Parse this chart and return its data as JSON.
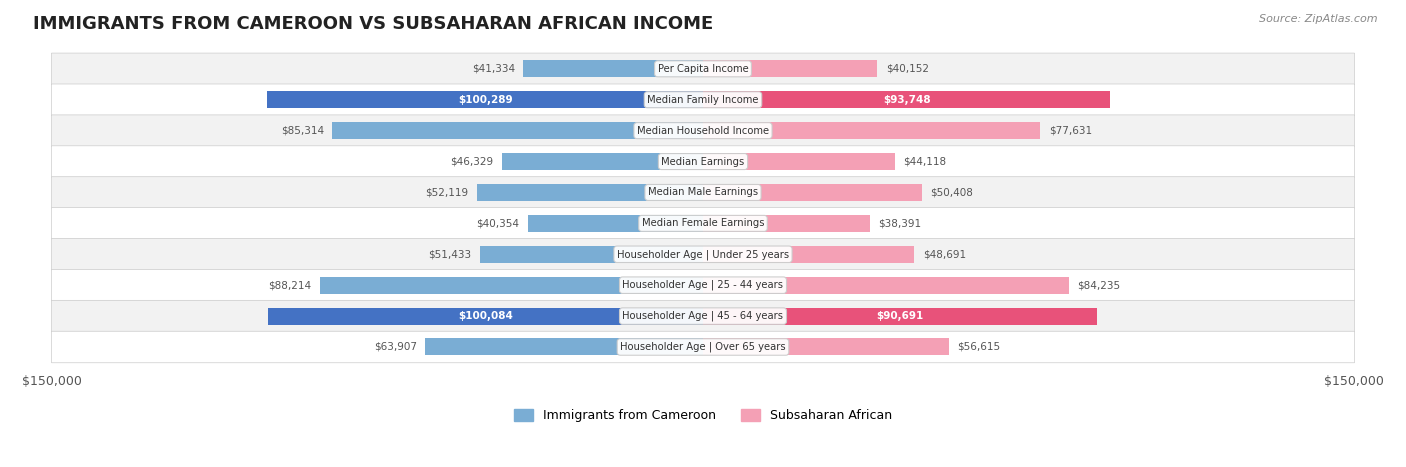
{
  "title": "IMMIGRANTS FROM CAMEROON VS SUBSAHARAN AFRICAN INCOME",
  "source": "Source: ZipAtlas.com",
  "categories": [
    "Per Capita Income",
    "Median Family Income",
    "Median Household Income",
    "Median Earnings",
    "Median Male Earnings",
    "Median Female Earnings",
    "Householder Age | Under 25 years",
    "Householder Age | 25 - 44 years",
    "Householder Age | 45 - 64 years",
    "Householder Age | Over 65 years"
  ],
  "cameroon_values": [
    41334,
    100289,
    85314,
    46329,
    52119,
    40354,
    51433,
    88214,
    100084,
    63907
  ],
  "subsaharan_values": [
    40152,
    93748,
    77631,
    44118,
    50408,
    38391,
    48691,
    84235,
    90691,
    56615
  ],
  "cameroon_labels": [
    "$41,334",
    "$100,289",
    "$85,314",
    "$46,329",
    "$52,119",
    "$40,354",
    "$51,433",
    "$88,214",
    "$100,084",
    "$63,907"
  ],
  "subsaharan_labels": [
    "$40,152",
    "$93,748",
    "$77,631",
    "$44,118",
    "$50,408",
    "$38,391",
    "$48,691",
    "$84,235",
    "$90,691",
    "$56,615"
  ],
  "max_value": 150000,
  "bar_height": 0.55,
  "cameroon_color": "#7aadd4",
  "cameroon_highlight_color": "#4472c4",
  "subsaharan_color": "#f4a0b5",
  "subsaharan_highlight_color": "#e8527a",
  "row_bg_color": "#f2f2f2",
  "row_alt_bg_color": "#ffffff",
  "label_color_inside": "#ffffff",
  "label_color_outside": "#555555",
  "highlight_rows": [
    1,
    8
  ],
  "legend_cameroon": "Immigrants from Cameroon",
  "legend_subsaharan": "Subsaharan African",
  "x_ticks": [
    -150000,
    150000
  ],
  "x_tick_labels": [
    "$150,000",
    "$150,000"
  ]
}
